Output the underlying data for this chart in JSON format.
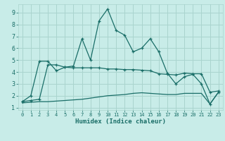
{
  "title": "",
  "xlabel": "Humidex (Indice chaleur)",
  "bg_color": "#c8ece8",
  "line_color": "#1a6e68",
  "grid_color": "#aad4ce",
  "xlim": [
    -0.5,
    23.5
  ],
  "ylim": [
    0.8,
    9.7
  ],
  "xticks": [
    0,
    1,
    2,
    3,
    4,
    5,
    6,
    7,
    8,
    9,
    10,
    11,
    12,
    13,
    14,
    15,
    16,
    17,
    18,
    19,
    20,
    21,
    22,
    23
  ],
  "yticks": [
    1,
    2,
    3,
    4,
    5,
    6,
    7,
    8,
    9
  ],
  "line1_x": [
    0,
    1,
    2,
    3,
    4,
    5,
    6,
    7,
    8,
    9,
    10,
    11,
    12,
    13,
    14,
    15,
    16,
    17,
    18,
    19,
    20,
    21,
    22,
    23
  ],
  "line1_y": [
    1.5,
    2.0,
    4.9,
    4.9,
    4.1,
    4.4,
    4.5,
    6.8,
    5.0,
    8.3,
    9.3,
    7.5,
    7.1,
    5.7,
    6.0,
    6.8,
    5.7,
    3.9,
    3.0,
    3.6,
    3.8,
    3.0,
    1.3,
    2.3
  ],
  "line2_x": [
    0,
    1,
    2,
    3,
    4,
    5,
    6,
    7,
    8,
    9,
    10,
    11,
    12,
    13,
    14,
    15,
    16,
    17,
    18,
    19,
    20,
    21,
    22,
    23
  ],
  "line2_y": [
    1.5,
    1.6,
    1.7,
    4.6,
    4.6,
    4.4,
    4.35,
    4.35,
    4.35,
    4.35,
    4.25,
    4.25,
    4.2,
    4.2,
    4.15,
    4.1,
    3.85,
    3.8,
    3.75,
    3.9,
    3.85,
    3.85,
    2.3,
    2.4
  ],
  "line3_x": [
    0,
    1,
    2,
    3,
    4,
    5,
    6,
    7,
    8,
    9,
    10,
    11,
    12,
    13,
    14,
    15,
    16,
    17,
    18,
    19,
    20,
    21,
    22,
    23
  ],
  "line3_y": [
    1.4,
    1.45,
    1.5,
    1.5,
    1.55,
    1.6,
    1.65,
    1.7,
    1.8,
    1.9,
    2.0,
    2.05,
    2.1,
    2.2,
    2.25,
    2.2,
    2.15,
    2.1,
    2.1,
    2.2,
    2.2,
    2.2,
    1.3,
    2.3
  ]
}
